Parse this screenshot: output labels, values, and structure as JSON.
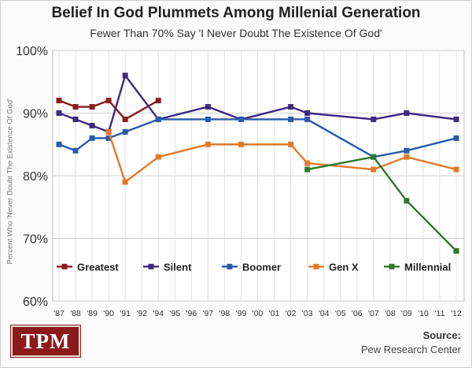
{
  "title": "Belief In God Plummets Among Millenial Generation",
  "subtitle": "Fewer Than 70% Say 'I Never Doubt The Existence Of God'",
  "logo": "TPM",
  "source": {
    "label": "Source:",
    "name": "Pew Research Center"
  },
  "chart_data": {
    "type": "line",
    "title": "Belief In God Plummets Among Millenial Generation",
    "subtitle": "Fewer Than 70% Say 'I Never Doubt The Existence Of God'",
    "ylabel": "Percent Who 'Never Doubt The Existence Of God'",
    "xlabel": "",
    "ylim": [
      60,
      100
    ],
    "yticks": [
      60,
      70,
      80,
      90,
      100
    ],
    "ytick_labels": [
      "60%",
      "70%",
      "80%",
      "90%",
      "100%"
    ],
    "x_years": [
      1987,
      1988,
      1989,
      1990,
      1991,
      1992,
      1994,
      1995,
      1996,
      1997,
      1998,
      1999,
      2000,
      2001,
      2002,
      2003,
      2004,
      2005,
      2006,
      2007,
      2008,
      2009,
      2010,
      2011,
      2012
    ],
    "xtick_labels": [
      "'87",
      "'88",
      "'89",
      "'90",
      "'91",
      "'92",
      "'94",
      "'95",
      "'96",
      "'97",
      "'98",
      "'99",
      "'00",
      "'01",
      "'02",
      "'03",
      "'04",
      "'05",
      "'06",
      "'07",
      "'08",
      "'09",
      "'10",
      "'11",
      "'12"
    ],
    "grid": true,
    "legend_position": "bottom",
    "series": [
      {
        "name": "Greatest",
        "color": "#8b1c1c",
        "points": [
          [
            1987,
            92
          ],
          [
            1988,
            91
          ],
          [
            1989,
            91
          ],
          [
            1990,
            92
          ],
          [
            1991,
            89
          ],
          [
            1994,
            92
          ]
        ]
      },
      {
        "name": "Silent",
        "color": "#3d2a80",
        "points": [
          [
            1987,
            90
          ],
          [
            1988,
            89
          ],
          [
            1989,
            88
          ],
          [
            1990,
            87
          ],
          [
            1991,
            96
          ],
          [
            1994,
            89
          ],
          [
            1997,
            91
          ],
          [
            1999,
            89
          ],
          [
            2002,
            91
          ],
          [
            2003,
            90
          ],
          [
            2007,
            89
          ],
          [
            2009,
            90
          ],
          [
            2012,
            89
          ]
        ]
      },
      {
        "name": "Boomer",
        "color": "#2a5aa8",
        "points": [
          [
            1987,
            85
          ],
          [
            1988,
            84
          ],
          [
            1989,
            86
          ],
          [
            1990,
            86
          ],
          [
            1991,
            87
          ],
          [
            1994,
            89
          ],
          [
            1997,
            89
          ],
          [
            1999,
            89
          ],
          [
            2002,
            89
          ],
          [
            2003,
            89
          ],
          [
            2007,
            83
          ],
          [
            2009,
            84
          ],
          [
            2012,
            86
          ]
        ]
      },
      {
        "name": "Gen X",
        "color": "#e07a2a",
        "points": [
          [
            1990,
            87
          ],
          [
            1991,
            79
          ],
          [
            1994,
            83
          ],
          [
            1997,
            85
          ],
          [
            1999,
            85
          ],
          [
            2002,
            85
          ],
          [
            2003,
            82
          ],
          [
            2007,
            81
          ],
          [
            2009,
            83
          ],
          [
            2012,
            81
          ]
        ]
      },
      {
        "name": "Millennial",
        "color": "#2d7a2d",
        "points": [
          [
            2003,
            81
          ],
          [
            2007,
            83
          ],
          [
            2009,
            76
          ],
          [
            2012,
            68
          ]
        ]
      }
    ]
  }
}
